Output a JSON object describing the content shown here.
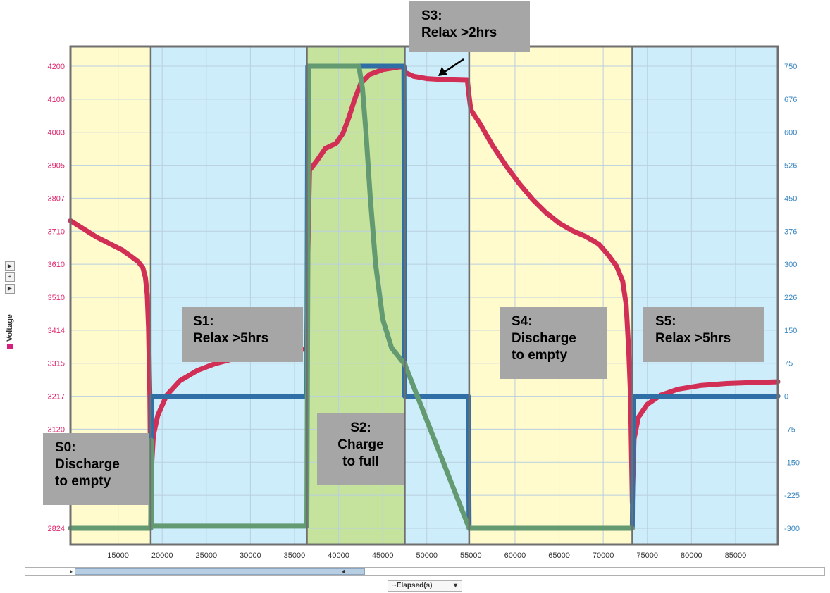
{
  "chart_data": {
    "type": "line",
    "xlabel": "~Elapsed(s)",
    "ylabel": "Voltage",
    "x_ticks": [
      15000,
      20000,
      25000,
      30000,
      35000,
      40000,
      45000,
      50000,
      55000,
      60000,
      65000,
      70000,
      75000,
      80000,
      85000
    ],
    "xlim": [
      9600,
      89800
    ],
    "y_left_ticks": [
      "4200",
      "4100",
      "4003",
      "3905",
      "3807",
      "3710",
      "3610",
      "3510",
      "3414",
      "3315",
      "3217",
      "3120",
      "2824"
    ],
    "y_right_ticks": [
      "750",
      "676",
      "600",
      "526",
      "450",
      "376",
      "300",
      "226",
      "150",
      "75",
      "0",
      "-75",
      "-150",
      "-225",
      "-300"
    ],
    "y_left_range": [
      2824,
      4200
    ],
    "y_right_range": [
      -300,
      750
    ],
    "phases": [
      {
        "label": "S0",
        "x_start": 9600,
        "x_end": 18700,
        "color": "#fffbcc"
      },
      {
        "label": "S1",
        "x_start": 18700,
        "x_end": 36400,
        "color": "#cdedfa"
      },
      {
        "label": "S2",
        "x_start": 36400,
        "x_end": 47500,
        "color": "#c5e39d"
      },
      {
        "label": "S3",
        "x_start": 47500,
        "x_end": 54800,
        "color": "#cdedfa"
      },
      {
        "label": "S4",
        "x_start": 54800,
        "x_end": 73300,
        "color": "#fffbcc"
      },
      {
        "label": "S5",
        "x_start": 73300,
        "x_end": 89800,
        "color": "#cdedfa"
      }
    ],
    "series": [
      {
        "axis": "left",
        "color": "#d12f55",
        "points": [
          [
            9600,
            3740
          ],
          [
            11000,
            3717
          ],
          [
            12500,
            3692
          ],
          [
            14000,
            3672
          ],
          [
            15500,
            3652
          ],
          [
            16500,
            3633
          ],
          [
            17300,
            3617
          ],
          [
            17800,
            3600
          ],
          [
            18100,
            3570
          ],
          [
            18300,
            3520
          ],
          [
            18450,
            3420
          ],
          [
            18600,
            3217
          ],
          [
            18700,
            2920
          ],
          [
            18800,
            3010
          ],
          [
            19000,
            3100
          ],
          [
            19500,
            3160
          ],
          [
            20500,
            3220
          ],
          [
            22000,
            3263
          ],
          [
            24000,
            3294
          ],
          [
            26000,
            3314
          ],
          [
            28000,
            3328
          ],
          [
            30000,
            3340
          ],
          [
            33000,
            3350
          ],
          [
            36400,
            3358
          ],
          [
            36500,
            3620
          ],
          [
            36700,
            3890
          ],
          [
            37500,
            3917
          ],
          [
            38500,
            3955
          ],
          [
            39700,
            3970
          ],
          [
            40500,
            4000
          ],
          [
            41200,
            4050
          ],
          [
            41800,
            4100
          ],
          [
            42500,
            4148
          ],
          [
            43500,
            4175
          ],
          [
            45000,
            4190
          ],
          [
            47400,
            4200
          ],
          [
            47500,
            4182
          ],
          [
            48500,
            4170
          ],
          [
            50000,
            4163
          ],
          [
            52000,
            4160
          ],
          [
            54600,
            4158
          ],
          [
            54800,
            4110
          ],
          [
            55000,
            4070
          ],
          [
            56000,
            4030
          ],
          [
            57500,
            3962
          ],
          [
            59000,
            3903
          ],
          [
            60500,
            3850
          ],
          [
            62000,
            3803
          ],
          [
            63500,
            3764
          ],
          [
            65000,
            3733
          ],
          [
            66500,
            3710
          ],
          [
            68000,
            3693
          ],
          [
            69500,
            3670
          ],
          [
            70500,
            3640
          ],
          [
            71500,
            3605
          ],
          [
            72200,
            3560
          ],
          [
            72600,
            3490
          ],
          [
            72900,
            3350
          ],
          [
            73100,
            3217
          ],
          [
            73300,
            2900
          ],
          [
            73500,
            3090
          ],
          [
            74000,
            3155
          ],
          [
            75000,
            3193
          ],
          [
            76500,
            3220
          ],
          [
            78500,
            3238
          ],
          [
            81000,
            3249
          ],
          [
            84000,
            3255
          ],
          [
            87000,
            3258
          ],
          [
            89800,
            3260
          ]
        ]
      },
      {
        "axis": "right",
        "color": "#2f6fa6",
        "points": [
          [
            9600,
            -300
          ],
          [
            18700,
            -300
          ],
          [
            18800,
            0
          ],
          [
            36400,
            0
          ],
          [
            36500,
            750
          ],
          [
            47400,
            750
          ],
          [
            47500,
            0
          ],
          [
            54700,
            0
          ],
          [
            54800,
            -300
          ],
          [
            73300,
            -300
          ],
          [
            73400,
            0
          ],
          [
            89800,
            0
          ]
        ]
      },
      {
        "axis": "right",
        "color": "#639a71",
        "points": [
          [
            9600,
            -300
          ],
          [
            18700,
            -300
          ],
          [
            18750,
            -100
          ],
          [
            18800,
            -295
          ],
          [
            36300,
            -295
          ],
          [
            36400,
            -295
          ],
          [
            36600,
            750
          ],
          [
            42300,
            750
          ],
          [
            42700,
            700
          ],
          [
            43100,
            600
          ],
          [
            43600,
            450
          ],
          [
            44200,
            300
          ],
          [
            45000,
            175
          ],
          [
            46000,
            110
          ],
          [
            47400,
            75
          ],
          [
            47500,
            75
          ],
          [
            47600,
            68
          ],
          [
            54800,
            -300
          ],
          [
            73300,
            -300
          ]
        ]
      }
    ],
    "annotations": [
      {
        "id": "s0",
        "lines": [
          "S0:",
          "Discharge",
          "to empty"
        ]
      },
      {
        "id": "s1",
        "lines": [
          "S1:",
          "Relax >5hrs"
        ]
      },
      {
        "id": "s2",
        "lines": [
          "S2:",
          "Charge",
          "to full"
        ]
      },
      {
        "id": "s3",
        "lines": [
          "S3:",
          "Relax >2hrs"
        ]
      },
      {
        "id": "s4",
        "lines": [
          "S4:",
          "Discharge",
          "to empty"
        ]
      },
      {
        "id": "s5",
        "lines": [
          "S5:",
          "Relax >5hrs"
        ]
      }
    ],
    "grid": true
  },
  "ui": {
    "xaxis_selector": "~Elapsed(s)",
    "side_controls": [
      "▶",
      "+",
      "▶"
    ]
  }
}
